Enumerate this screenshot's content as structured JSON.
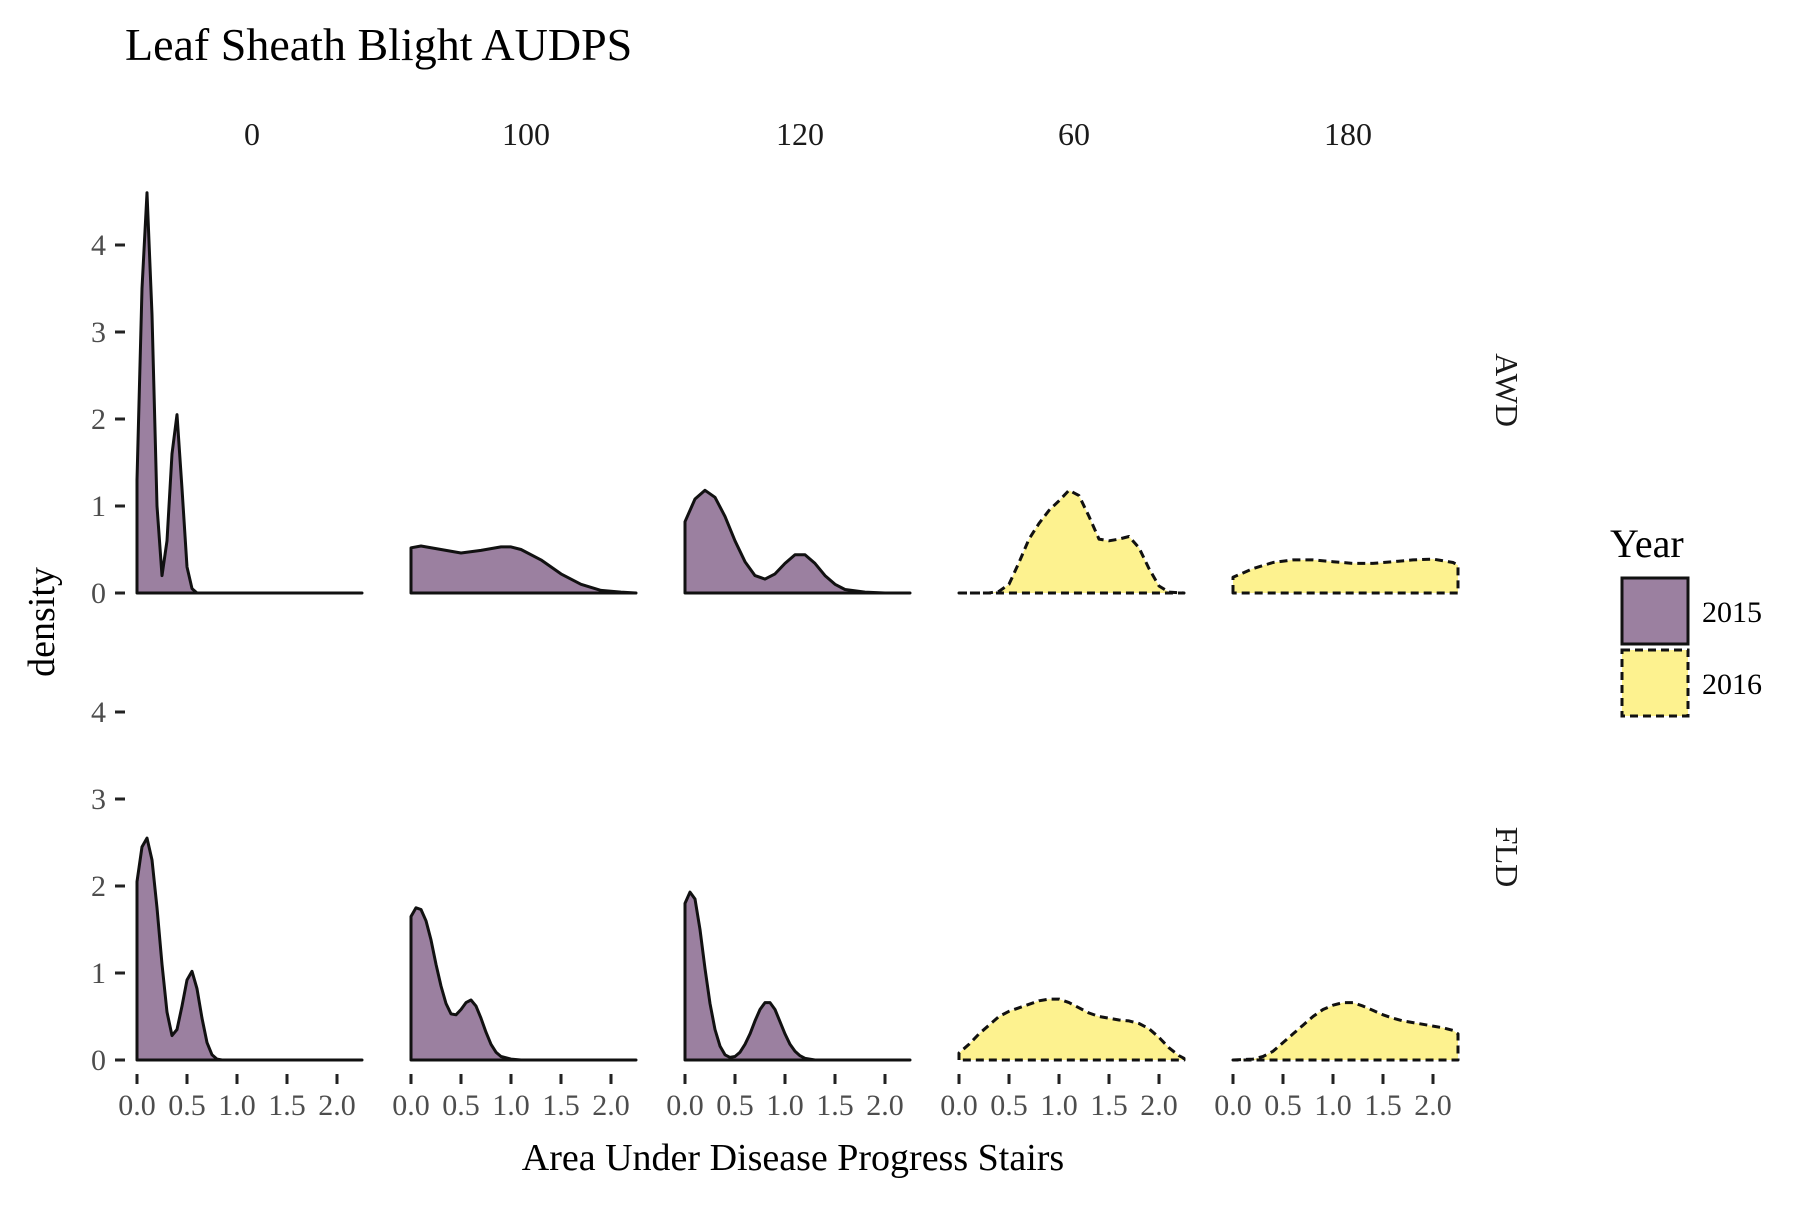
{
  "chart_data": {
    "type": "area",
    "title": "Leaf Sheath Blight AUDPS",
    "xlabel": "Area Under Disease Progress Stairs",
    "ylabel": "density",
    "columns": [
      "0",
      "100",
      "120",
      "60",
      "180"
    ],
    "rows": [
      "AWD",
      "FLD"
    ],
    "x_ticks": [
      "0.0",
      "0.5",
      "1.0",
      "1.5",
      "2.0"
    ],
    "y_ticks": [
      "0",
      "1",
      "2",
      "3",
      "4"
    ],
    "xlim": [
      0,
      2.3
    ],
    "ylim": [
      0,
      4.75
    ],
    "grid": false,
    "legend": {
      "title": "Year",
      "position": "right",
      "items": [
        {
          "label": "2015",
          "color": "#9b80a0",
          "line": "solid"
        },
        {
          "label": "2016",
          "color": "#fdf28f",
          "line": "dashed"
        }
      ]
    },
    "panels": [
      {
        "row": "AWD",
        "column": "0",
        "year": "2015",
        "x": [
          0,
          0.05,
          0.1,
          0.15,
          0.2,
          0.25,
          0.3,
          0.35,
          0.4,
          0.45,
          0.5,
          0.55,
          0.6,
          0.7,
          1.0,
          1.5,
          2.0,
          2.25
        ],
        "y": [
          1.3,
          3.5,
          4.6,
          3.2,
          1.0,
          0.2,
          0.6,
          1.6,
          2.05,
          1.2,
          0.3,
          0.05,
          0.0,
          0.0,
          0.0,
          0.0,
          0.0,
          0.0
        ]
      },
      {
        "row": "AWD",
        "column": "100",
        "year": "2015",
        "x": [
          0,
          0.1,
          0.3,
          0.5,
          0.7,
          0.9,
          1.0,
          1.1,
          1.3,
          1.5,
          1.7,
          1.9,
          2.1,
          2.25
        ],
        "y": [
          0.52,
          0.54,
          0.5,
          0.46,
          0.49,
          0.53,
          0.53,
          0.5,
          0.38,
          0.22,
          0.1,
          0.03,
          0.01,
          0.0
        ]
      },
      {
        "row": "AWD",
        "column": "120",
        "year": "2015",
        "x": [
          0,
          0.1,
          0.2,
          0.3,
          0.4,
          0.5,
          0.6,
          0.7,
          0.8,
          0.9,
          1.0,
          1.1,
          1.2,
          1.3,
          1.4,
          1.5,
          1.6,
          1.8,
          2.0,
          2.25
        ],
        "y": [
          0.82,
          1.08,
          1.18,
          1.1,
          0.88,
          0.6,
          0.36,
          0.2,
          0.16,
          0.22,
          0.34,
          0.44,
          0.44,
          0.34,
          0.2,
          0.1,
          0.04,
          0.01,
          0.0,
          0.0
        ]
      },
      {
        "row": "AWD",
        "column": "60",
        "year": "2016",
        "x": [
          0,
          0.3,
          0.4,
          0.5,
          0.6,
          0.7,
          0.8,
          0.9,
          1.0,
          1.1,
          1.2,
          1.3,
          1.4,
          1.5,
          1.6,
          1.7,
          1.8,
          1.9,
          2.0,
          2.1,
          2.25
        ],
        "y": [
          0.0,
          0.0,
          0.02,
          0.1,
          0.35,
          0.62,
          0.8,
          0.95,
          1.06,
          1.18,
          1.12,
          0.88,
          0.62,
          0.6,
          0.62,
          0.65,
          0.52,
          0.28,
          0.08,
          0.01,
          0.0
        ]
      },
      {
        "row": "AWD",
        "column": "180",
        "year": "2016",
        "x": [
          0,
          0.2,
          0.4,
          0.6,
          0.8,
          1.0,
          1.2,
          1.4,
          1.6,
          1.8,
          2.0,
          2.2,
          2.25
        ],
        "y": [
          0.18,
          0.28,
          0.35,
          0.38,
          0.38,
          0.36,
          0.34,
          0.34,
          0.36,
          0.38,
          0.39,
          0.35,
          0.32
        ]
      },
      {
        "row": "FLD",
        "column": "0",
        "year": "2015",
        "x": [
          0,
          0.05,
          0.1,
          0.15,
          0.2,
          0.25,
          0.3,
          0.35,
          0.4,
          0.45,
          0.5,
          0.55,
          0.6,
          0.65,
          0.7,
          0.75,
          0.8,
          0.85,
          0.9,
          1.0,
          1.5,
          2.0,
          2.25
        ],
        "y": [
          2.05,
          2.45,
          2.55,
          2.3,
          1.75,
          1.1,
          0.55,
          0.28,
          0.35,
          0.62,
          0.92,
          1.02,
          0.82,
          0.48,
          0.2,
          0.06,
          0.01,
          0.0,
          0.0,
          0.0,
          0.0,
          0.0,
          0.0
        ]
      },
      {
        "row": "FLD",
        "column": "100",
        "year": "2015",
        "x": [
          0,
          0.05,
          0.1,
          0.15,
          0.2,
          0.25,
          0.3,
          0.35,
          0.4,
          0.45,
          0.5,
          0.55,
          0.6,
          0.65,
          0.7,
          0.75,
          0.8,
          0.85,
          0.9,
          1.0,
          1.1,
          1.3,
          1.5,
          2.0,
          2.25
        ],
        "y": [
          1.65,
          1.75,
          1.73,
          1.6,
          1.38,
          1.1,
          0.85,
          0.65,
          0.53,
          0.52,
          0.58,
          0.66,
          0.69,
          0.62,
          0.48,
          0.32,
          0.18,
          0.09,
          0.04,
          0.01,
          0.0,
          0.0,
          0.0,
          0.0,
          0.0
        ]
      },
      {
        "row": "FLD",
        "column": "120",
        "year": "2015",
        "x": [
          0,
          0.05,
          0.1,
          0.15,
          0.2,
          0.25,
          0.3,
          0.35,
          0.4,
          0.45,
          0.5,
          0.55,
          0.6,
          0.65,
          0.7,
          0.75,
          0.8,
          0.85,
          0.9,
          0.95,
          1.0,
          1.05,
          1.1,
          1.15,
          1.2,
          1.3,
          1.4,
          1.5,
          2.0,
          2.25
        ],
        "y": [
          1.8,
          1.93,
          1.85,
          1.5,
          1.05,
          0.65,
          0.35,
          0.16,
          0.06,
          0.03,
          0.04,
          0.09,
          0.18,
          0.3,
          0.45,
          0.58,
          0.66,
          0.66,
          0.58,
          0.44,
          0.3,
          0.18,
          0.1,
          0.05,
          0.02,
          0.0,
          0.0,
          0.0,
          0.0,
          0.0
        ]
      },
      {
        "row": "FLD",
        "column": "60",
        "year": "2016",
        "x": [
          0,
          0.1,
          0.2,
          0.3,
          0.4,
          0.5,
          0.6,
          0.7,
          0.8,
          0.9,
          1.0,
          1.1,
          1.2,
          1.3,
          1.4,
          1.5,
          1.6,
          1.7,
          1.8,
          1.9,
          2.0,
          2.1,
          2.2,
          2.25
        ],
        "y": [
          0.08,
          0.18,
          0.3,
          0.4,
          0.5,
          0.56,
          0.6,
          0.64,
          0.68,
          0.7,
          0.7,
          0.66,
          0.6,
          0.54,
          0.5,
          0.48,
          0.46,
          0.45,
          0.42,
          0.36,
          0.26,
          0.14,
          0.05,
          0.02
        ]
      },
      {
        "row": "FLD",
        "column": "180",
        "year": "2016",
        "x": [
          0,
          0.2,
          0.3,
          0.4,
          0.5,
          0.6,
          0.7,
          0.8,
          0.9,
          1.0,
          1.1,
          1.2,
          1.3,
          1.4,
          1.5,
          1.6,
          1.7,
          1.8,
          1.9,
          2.0,
          2.1,
          2.2,
          2.25
        ],
        "y": [
          0.0,
          0.01,
          0.04,
          0.1,
          0.2,
          0.3,
          0.4,
          0.5,
          0.58,
          0.63,
          0.66,
          0.66,
          0.62,
          0.57,
          0.52,
          0.48,
          0.45,
          0.43,
          0.41,
          0.39,
          0.37,
          0.34,
          0.3
        ]
      }
    ]
  }
}
